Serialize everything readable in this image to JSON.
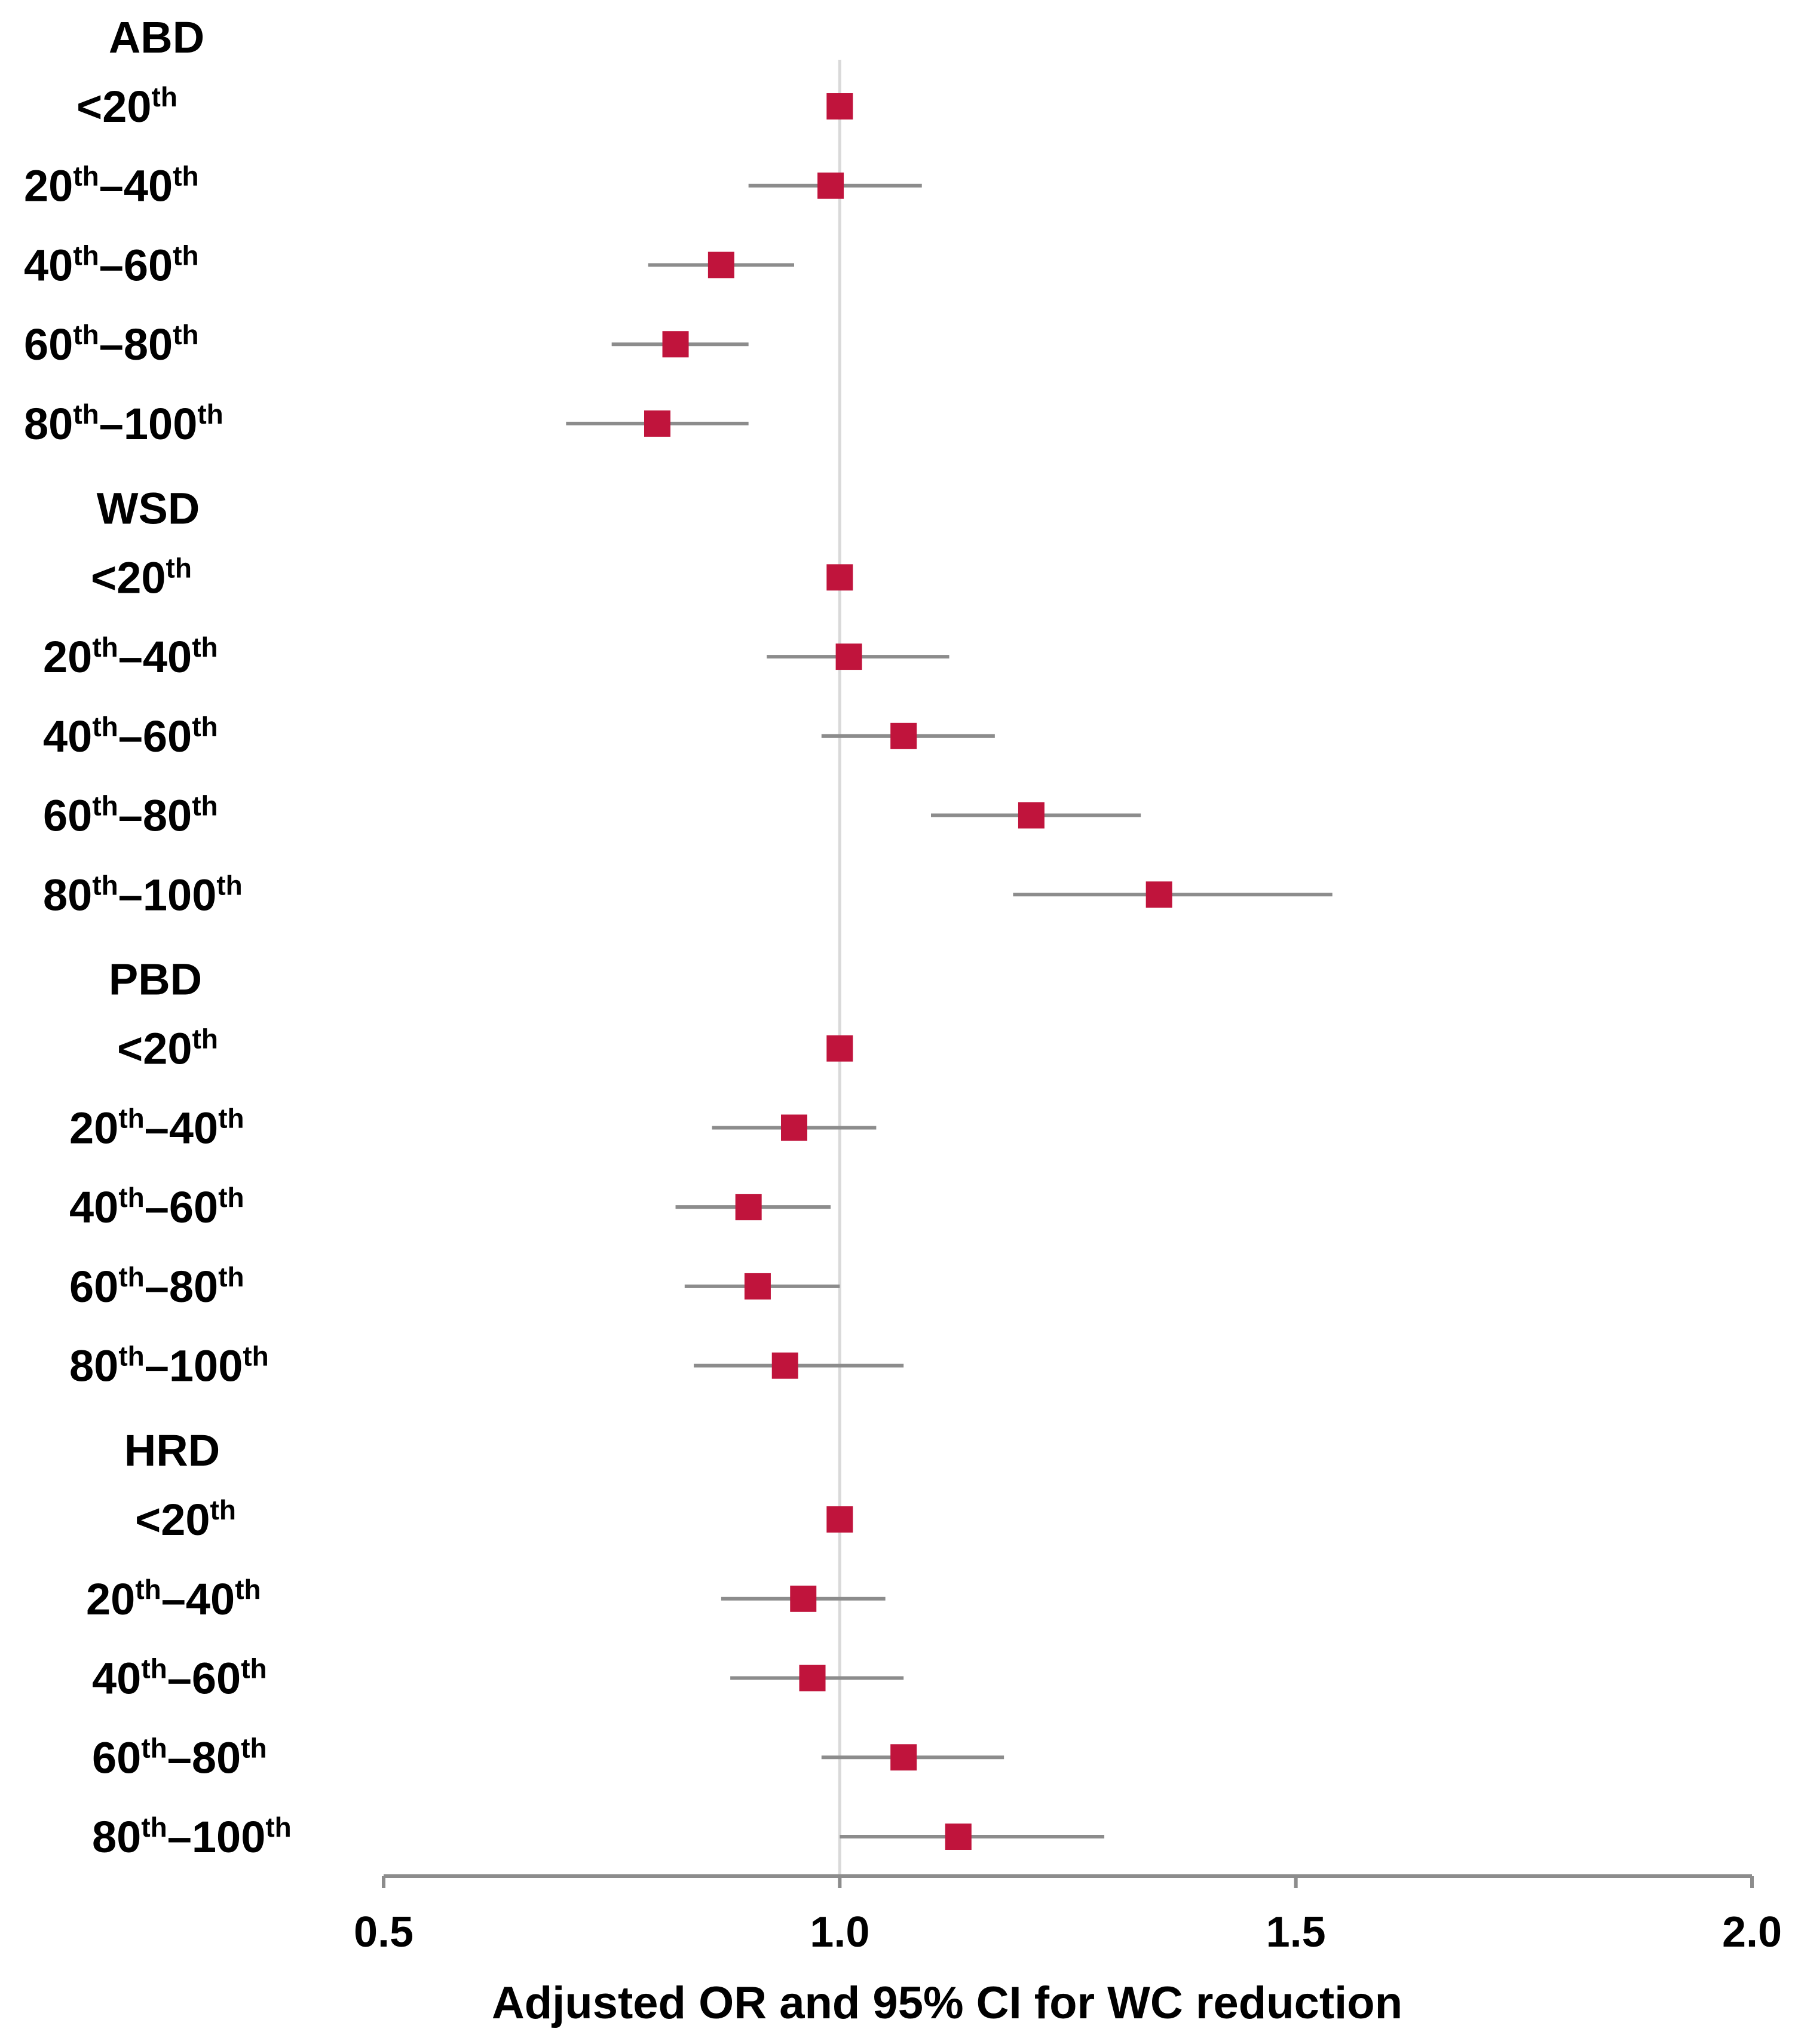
{
  "colors": {
    "marker": "#c0143c",
    "ci_line": "#8c8c8c",
    "reference_line": "#d9d9d9",
    "axis": "#8c8c8c"
  },
  "chart_data": {
    "type": "forest",
    "xlabel": "Adjusted OR and 95% CI for WC reduction",
    "xlim": [
      0.5,
      2.0
    ],
    "xticks": [
      0.5,
      1.0,
      1.5,
      2.0
    ],
    "xtick_labels": [
      "0.5",
      "1.0",
      "1.5",
      "2.0"
    ],
    "reference_value": 1.0,
    "groups": [
      {
        "title": "ABD",
        "rows": [
          {
            "label_parts": [
              {
                "t": "<20"
              },
              {
                "t": "th",
                "sup": true
              }
            ],
            "or": 1.0,
            "lo": 1.0,
            "hi": 1.0
          },
          {
            "label_parts": [
              {
                "t": "20"
              },
              {
                "t": "th",
                "sup": true
              },
              {
                "t": "–40"
              },
              {
                "t": "th",
                "sup": true
              }
            ],
            "or": 0.99,
            "lo": 0.9,
            "hi": 1.09
          },
          {
            "label_parts": [
              {
                "t": "40"
              },
              {
                "t": "th",
                "sup": true
              },
              {
                "t": "–60"
              },
              {
                "t": "th",
                "sup": true
              }
            ],
            "or": 0.87,
            "lo": 0.79,
            "hi": 0.95
          },
          {
            "label_parts": [
              {
                "t": "60"
              },
              {
                "t": "th",
                "sup": true
              },
              {
                "t": "–80"
              },
              {
                "t": "th",
                "sup": true
              }
            ],
            "or": 0.82,
            "lo": 0.75,
            "hi": 0.9
          },
          {
            "label_parts": [
              {
                "t": "80"
              },
              {
                "t": "th",
                "sup": true
              },
              {
                "t": "–100"
              },
              {
                "t": "th",
                "sup": true
              }
            ],
            "or": 0.8,
            "lo": 0.7,
            "hi": 0.9
          }
        ]
      },
      {
        "title": "WSD",
        "rows": [
          {
            "label_parts": [
              {
                "t": "<20"
              },
              {
                "t": "th",
                "sup": true
              }
            ],
            "or": 1.0,
            "lo": 1.0,
            "hi": 1.0
          },
          {
            "label_parts": [
              {
                "t": "20"
              },
              {
                "t": "th",
                "sup": true
              },
              {
                "t": "–40"
              },
              {
                "t": "th",
                "sup": true
              }
            ],
            "or": 1.01,
            "lo": 0.92,
            "hi": 1.12
          },
          {
            "label_parts": [
              {
                "t": "40"
              },
              {
                "t": "th",
                "sup": true
              },
              {
                "t": "–60"
              },
              {
                "t": "th",
                "sup": true
              }
            ],
            "or": 1.07,
            "lo": 0.98,
            "hi": 1.17
          },
          {
            "label_parts": [
              {
                "t": "60"
              },
              {
                "t": "th",
                "sup": true
              },
              {
                "t": "–80"
              },
              {
                "t": "th",
                "sup": true
              }
            ],
            "or": 1.21,
            "lo": 1.1,
            "hi": 1.33
          },
          {
            "label_parts": [
              {
                "t": "80"
              },
              {
                "t": "th",
                "sup": true
              },
              {
                "t": "–100"
              },
              {
                "t": "th",
                "sup": true
              }
            ],
            "or": 1.35,
            "lo": 1.19,
            "hi": 1.54
          }
        ]
      },
      {
        "title": "PBD",
        "rows": [
          {
            "label_parts": [
              {
                "t": "<20"
              },
              {
                "t": "th",
                "sup": true
              }
            ],
            "or": 1.0,
            "lo": 1.0,
            "hi": 1.0
          },
          {
            "label_parts": [
              {
                "t": "20"
              },
              {
                "t": "th",
                "sup": true
              },
              {
                "t": "–40"
              },
              {
                "t": "th",
                "sup": true
              }
            ],
            "or": 0.95,
            "lo": 0.86,
            "hi": 1.04
          },
          {
            "label_parts": [
              {
                "t": "40"
              },
              {
                "t": "th",
                "sup": true
              },
              {
                "t": "–60"
              },
              {
                "t": "th",
                "sup": true
              }
            ],
            "or": 0.9,
            "lo": 0.82,
            "hi": 0.99
          },
          {
            "label_parts": [
              {
                "t": "60"
              },
              {
                "t": "th",
                "sup": true
              },
              {
                "t": "–80"
              },
              {
                "t": "th",
                "sup": true
              }
            ],
            "or": 0.91,
            "lo": 0.83,
            "hi": 1.0
          },
          {
            "label_parts": [
              {
                "t": "80"
              },
              {
                "t": "th",
                "sup": true
              },
              {
                "t": "–100"
              },
              {
                "t": "th",
                "sup": true
              }
            ],
            "or": 0.94,
            "lo": 0.84,
            "hi": 1.07
          }
        ]
      },
      {
        "title": "HRD",
        "rows": [
          {
            "label_parts": [
              {
                "t": "<20"
              },
              {
                "t": "th",
                "sup": true
              }
            ],
            "or": 1.0,
            "lo": 1.0,
            "hi": 1.0
          },
          {
            "label_parts": [
              {
                "t": "20"
              },
              {
                "t": "th",
                "sup": true
              },
              {
                "t": "–40"
              },
              {
                "t": "th",
                "sup": true
              }
            ],
            "or": 0.96,
            "lo": 0.87,
            "hi": 1.05
          },
          {
            "label_parts": [
              {
                "t": "40"
              },
              {
                "t": "th",
                "sup": true
              },
              {
                "t": "–60"
              },
              {
                "t": "th",
                "sup": true
              }
            ],
            "or": 0.97,
            "lo": 0.88,
            "hi": 1.07
          },
          {
            "label_parts": [
              {
                "t": "60"
              },
              {
                "t": "th",
                "sup": true
              },
              {
                "t": "–80"
              },
              {
                "t": "th",
                "sup": true
              }
            ],
            "or": 1.07,
            "lo": 0.98,
            "hi": 1.18
          },
          {
            "label_parts": [
              {
                "t": "80"
              },
              {
                "t": "th",
                "sup": true
              },
              {
                "t": "–100"
              },
              {
                "t": "th",
                "sup": true
              }
            ],
            "or": 1.13,
            "lo": 1.0,
            "hi": 1.29
          }
        ]
      }
    ]
  }
}
